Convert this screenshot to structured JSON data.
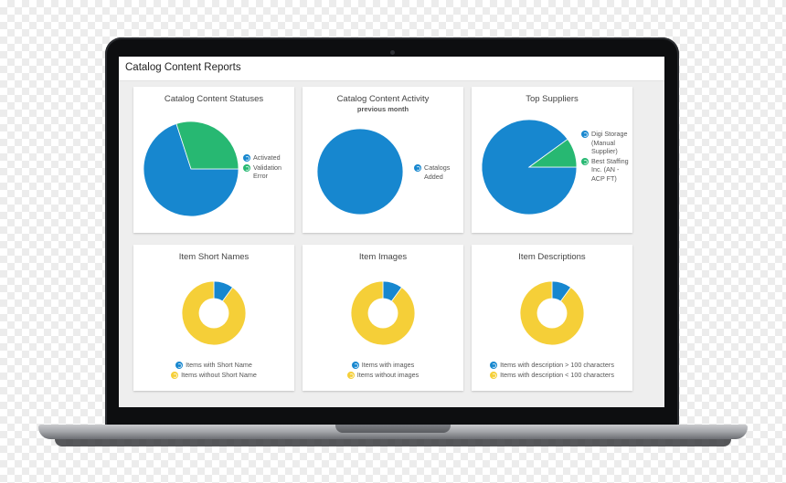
{
  "page": {
    "title": "Catalog Content Reports"
  },
  "colors": {
    "blue": "#1787cf",
    "green": "#27b872",
    "yellow": "#f5cf38"
  },
  "cards": [
    {
      "title": "Catalog Content Statuses",
      "legend": [
        "Activated",
        "Validation Error"
      ],
      "chart_data": {
        "type": "pie",
        "categories": [
          "Activated",
          "Validation Error"
        ],
        "values": [
          70,
          30
        ],
        "colors": [
          "#1787cf",
          "#27b872"
        ]
      }
    },
    {
      "title": "Catalog Content Activity",
      "subtitle": "previous month",
      "legend": [
        "Catalogs Added"
      ],
      "chart_data": {
        "type": "pie",
        "categories": [
          "Catalogs Added"
        ],
        "values": [
          100
        ],
        "colors": [
          "#1787cf"
        ]
      }
    },
    {
      "title": "Top Suppliers",
      "legend": [
        "Digi Storage (Manual Supplier)",
        "Best Staffing Inc. (AN - ACP FT)"
      ],
      "chart_data": {
        "type": "pie",
        "categories": [
          "Digi Storage (Manual Supplier)",
          "Best Staffing Inc. (AN - ACP FT)"
        ],
        "values": [
          90,
          10
        ],
        "colors": [
          "#1787cf",
          "#27b872"
        ]
      }
    },
    {
      "title": "Item Short Names",
      "legend": [
        "Items with Short Name",
        "Items without Short Name"
      ],
      "chart_data": {
        "type": "pie",
        "categories": [
          "Items with Short Name",
          "Items without Short Name"
        ],
        "values": [
          10,
          90
        ],
        "colors": [
          "#1787cf",
          "#f5cf38"
        ]
      }
    },
    {
      "title": "Item Images",
      "legend": [
        "Items with images",
        "Items without images"
      ],
      "chart_data": {
        "type": "pie",
        "categories": [
          "Items with images",
          "Items without images"
        ],
        "values": [
          10,
          90
        ],
        "colors": [
          "#1787cf",
          "#f5cf38"
        ]
      }
    },
    {
      "title": "Item Descriptions",
      "legend": [
        "Items with description > 100 characters",
        "Items with description < 100 characters"
      ],
      "chart_data": {
        "type": "pie",
        "categories": [
          "Items with description > 100 characters",
          "Items with description < 100 characters"
        ],
        "values": [
          10,
          90
        ],
        "colors": [
          "#1787cf",
          "#f5cf38"
        ]
      }
    }
  ]
}
